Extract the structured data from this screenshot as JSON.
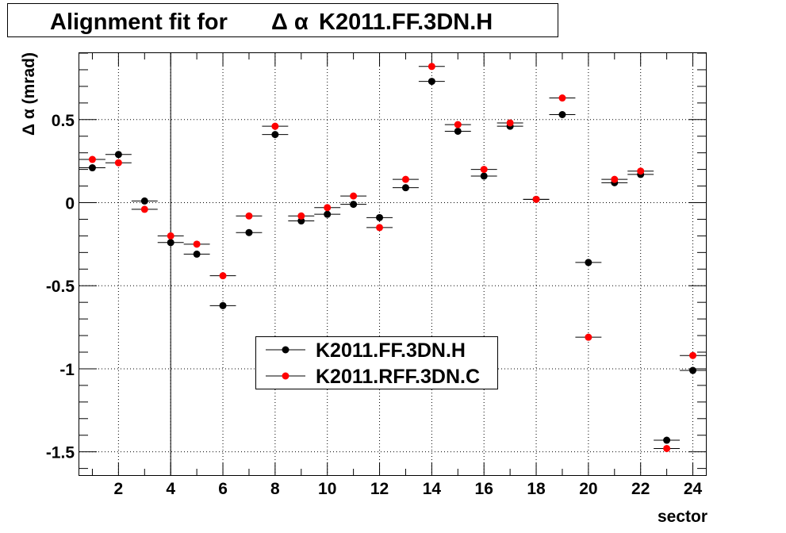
{
  "chart_data": {
    "type": "scatter",
    "title_prefix": "Alignment fit for",
    "title_symbol": "Δ α",
    "title_suffix": "K2011.FF.3DN.H",
    "xlabel": "sector",
    "ylabel": "Δ α (mrad)",
    "xlim": [
      0.5,
      24.5
    ],
    "ylim": [
      -1.64,
      0.9
    ],
    "xticks": [
      2,
      4,
      6,
      8,
      10,
      12,
      14,
      16,
      18,
      20,
      22,
      24
    ],
    "yticks": [
      0.5,
      0,
      -0.5,
      -1,
      -1.5
    ],
    "ytick_labels": [
      "0.5",
      "0",
      "-0.5",
      "-1",
      "-1.5"
    ],
    "grid": true,
    "marker_line": 4,
    "legend_placement": "lower-center",
    "x": [
      1,
      2,
      3,
      4,
      5,
      6,
      7,
      8,
      9,
      10,
      11,
      12,
      13,
      14,
      15,
      16,
      17,
      18,
      19,
      20,
      21,
      22,
      23,
      24
    ],
    "series": [
      {
        "name": "K2011.FF.3DN.H",
        "color": "#000000",
        "values": [
          0.21,
          0.29,
          0.01,
          -0.24,
          -0.31,
          -0.62,
          -0.18,
          0.41,
          -0.11,
          -0.07,
          -0.01,
          -0.09,
          0.09,
          0.73,
          0.43,
          0.16,
          0.46,
          0.02,
          0.53,
          -0.36,
          0.12,
          0.17,
          -1.43,
          -1.01
        ]
      },
      {
        "name": "K2011.RFF.3DN.C",
        "color": "#ff0000",
        "values": [
          0.26,
          0.24,
          -0.04,
          -0.2,
          -0.25,
          -0.44,
          -0.08,
          0.46,
          -0.08,
          -0.03,
          0.04,
          -0.15,
          0.14,
          0.82,
          0.47,
          0.2,
          0.48,
          0.02,
          0.63,
          -0.81,
          0.14,
          0.19,
          -1.48,
          -0.92
        ]
      }
    ]
  }
}
